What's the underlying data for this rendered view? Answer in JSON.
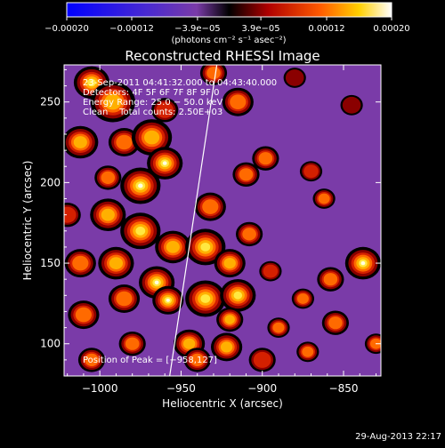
{
  "chart_data": {
    "type": "heatmap",
    "title": "Reconstructed RHESSI Image",
    "xlabel": "Heliocentric X (arcsec)",
    "ylabel": "Heliocentric Y (arcsec)",
    "xlim": [
      -1022,
      -827
    ],
    "ylim": [
      80,
      273
    ],
    "xticks": [
      -1000,
      -950,
      -900,
      -850
    ],
    "yticks": [
      100,
      150,
      200,
      250
    ],
    "xtick_labels": [
      "−1000",
      "−950",
      "−900",
      "−850"
    ],
    "ytick_labels": [
      "100",
      "150",
      "200",
      "250"
    ],
    "colorbar": {
      "range": [
        -0.0002,
        0.0002
      ],
      "ticks": [
        -0.0002,
        -0.00012,
        -3.9e-05,
        3.9e-05,
        0.00012,
        0.0002
      ],
      "tick_labels": [
        "−0.00020",
        "−0.00012",
        "−3.9e−05",
        "3.9e−05",
        "0.00012",
        "0.00020"
      ],
      "unit_label": "(photons cm⁻² s⁻¹ asec⁻²)"
    },
    "annotations": [
      "23‑Sep‑2011 04:41:32.000 to 04:43:40.000",
      "Detectors: 4F 5F 6F 7F 8F 9F 0",
      "Energy Range: 25.0 − 50.0 keV",
      "Clean    Total counts: 2.50E+03",
      "Position of Peak = [−958,127]"
    ],
    "limb_line": [
      [
        -957,
        80
      ],
      [
        -928,
        273
      ]
    ],
    "peak": [
      -958,
      127
    ],
    "sources": [
      {
        "x": -1005,
        "y": 262,
        "s": 8,
        "a": 0.9
      },
      {
        "x": -992,
        "y": 250,
        "s": 10,
        "a": 0.75
      },
      {
        "x": -1012,
        "y": 225,
        "s": 8,
        "a": 0.7
      },
      {
        "x": -985,
        "y": 225,
        "s": 7,
        "a": 0.6
      },
      {
        "x": -968,
        "y": 228,
        "s": 9,
        "a": 0.65
      },
      {
        "x": -960,
        "y": 212,
        "s": 8,
        "a": 0.95
      },
      {
        "x": -975,
        "y": 198,
        "s": 9,
        "a": 1.0
      },
      {
        "x": -995,
        "y": 203,
        "s": 6,
        "a": 0.55
      },
      {
        "x": -995,
        "y": 180,
        "s": 8,
        "a": 0.75
      },
      {
        "x": -975,
        "y": 170,
        "s": 9,
        "a": 0.9
      },
      {
        "x": -955,
        "y": 160,
        "s": 8,
        "a": 0.7
      },
      {
        "x": -1012,
        "y": 150,
        "s": 7,
        "a": 0.5
      },
      {
        "x": -990,
        "y": 150,
        "s": 8,
        "a": 0.75
      },
      {
        "x": -965,
        "y": 138,
        "s": 8,
        "a": 0.95
      },
      {
        "x": -958,
        "y": 127,
        "s": 7,
        "a": 1.0
      },
      {
        "x": -935,
        "y": 128,
        "s": 9,
        "a": 0.9
      },
      {
        "x": -915,
        "y": 130,
        "s": 8,
        "a": 0.85
      },
      {
        "x": -985,
        "y": 128,
        "s": 7,
        "a": 0.55
      },
      {
        "x": -1010,
        "y": 118,
        "s": 7,
        "a": 0.6
      },
      {
        "x": -980,
        "y": 100,
        "s": 6,
        "a": 0.5
      },
      {
        "x": -945,
        "y": 100,
        "s": 7,
        "a": 0.75
      },
      {
        "x": -922,
        "y": 98,
        "s": 7,
        "a": 0.75
      },
      {
        "x": -1005,
        "y": 90,
        "s": 6,
        "a": 0.55
      },
      {
        "x": -935,
        "y": 160,
        "s": 9,
        "a": 0.8
      },
      {
        "x": -920,
        "y": 150,
        "s": 7,
        "a": 0.7
      },
      {
        "x": -908,
        "y": 168,
        "s": 6,
        "a": 0.55
      },
      {
        "x": -932,
        "y": 185,
        "s": 7,
        "a": 0.55
      },
      {
        "x": -910,
        "y": 205,
        "s": 6,
        "a": 0.6
      },
      {
        "x": -898,
        "y": 215,
        "s": 6,
        "a": 0.5
      },
      {
        "x": -870,
        "y": 207,
        "s": 5,
        "a": 0.45
      },
      {
        "x": -862,
        "y": 190,
        "s": 5,
        "a": 0.5
      },
      {
        "x": -838,
        "y": 150,
        "s": 8,
        "a": 0.95
      },
      {
        "x": -858,
        "y": 140,
        "s": 6,
        "a": 0.6
      },
      {
        "x": -875,
        "y": 128,
        "s": 5,
        "a": 0.55
      },
      {
        "x": -855,
        "y": 113,
        "s": 6,
        "a": 0.6
      },
      {
        "x": -872,
        "y": 95,
        "s": 5,
        "a": 0.5
      },
      {
        "x": -830,
        "y": 100,
        "s": 5,
        "a": 0.55
      },
      {
        "x": -890,
        "y": 110,
        "s": 5,
        "a": 0.55
      },
      {
        "x": -915,
        "y": 250,
        "s": 7,
        "a": 0.5
      },
      {
        "x": -930,
        "y": 268,
        "s": 6,
        "a": 0.5
      },
      {
        "x": -1020,
        "y": 180,
        "s": 6,
        "a": 0.45
      },
      {
        "x": -940,
        "y": 90,
        "s": 6,
        "a": 0.6
      },
      {
        "x": -900,
        "y": 90,
        "s": 6,
        "a": 0.45
      },
      {
        "x": -960,
        "y": 245,
        "s": 6,
        "a": 0.45
      },
      {
        "x": -895,
        "y": 145,
        "s": 5,
        "a": 0.45
      },
      {
        "x": -845,
        "y": 248,
        "s": 5,
        "a": 0.35
      },
      {
        "x": -880,
        "y": 265,
        "s": 5,
        "a": 0.35
      },
      {
        "x": -920,
        "y": 115,
        "s": 6,
        "a": 0.65
      }
    ]
  },
  "footer": {
    "timestamp": "29‑Aug‑2013 22:17"
  },
  "colors": {
    "background": "#000000",
    "foreground": "#ffffff",
    "negative_min": "#0000ff",
    "negative_mid": "#7a3ba8",
    "zero": "#000000",
    "positive_low": "#b00000",
    "positive_mid": "#ff7a00",
    "positive_max": "#ffffff"
  }
}
